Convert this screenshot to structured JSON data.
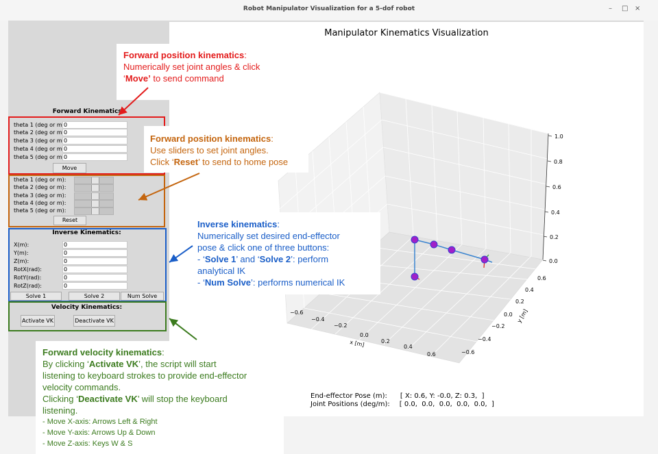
{
  "window": {
    "title": "Robot Manipulator Visualization for a 5-dof robot",
    "minimize": "–",
    "maximize": "□",
    "close": "×"
  },
  "fk": {
    "title": "Forward Kinematics:",
    "labels": [
      "theta 1 (deg or m):",
      "theta 2 (deg or m):",
      "theta 3 (deg or m):",
      "theta 4 (deg or m):",
      "theta 5 (deg or m):"
    ],
    "values": [
      "0",
      "0",
      "0",
      "0",
      "0"
    ],
    "move_label": "Move"
  },
  "sliders": {
    "labels": [
      "theta 1 (deg or m):",
      "theta 2 (deg or m):",
      "theta 3 (deg or m):",
      "theta 4 (deg or m):",
      "theta 5 (deg or m):"
    ],
    "reset_label": "Reset"
  },
  "ik": {
    "title": "Inverse Kinematics:",
    "labels": [
      "X(m):",
      "Y(m):",
      "Z(m):",
      "RotX(rad):",
      "RotY(rad):",
      "RotZ(rad):"
    ],
    "values": [
      "0",
      "0",
      "0",
      "0",
      "0",
      "0"
    ],
    "solve1_label": "Solve 1",
    "solve2_label": "Solve 2",
    "numsolve_label": "Num Solve"
  },
  "vk": {
    "title": "Velocity Kinematics:",
    "activate_label": "Activate VK",
    "deactivate_label": "Deactivate VK"
  },
  "plot": {
    "title": "Manipulator Kinematics Visualization",
    "z_ticks": [
      "1.0",
      "0.8",
      "0.6",
      "0.4",
      "0.2",
      "0.0"
    ],
    "y_ticks": [
      "0.6",
      "0.4",
      "0.2",
      "0.0",
      "−0.2",
      "−0.4",
      "−0.6"
    ],
    "x_ticks": [
      "−0.6",
      "−0.4",
      "−0.2",
      "0.0",
      "0.2",
      "0.4",
      "0.6"
    ],
    "xlabel": "x [m]",
    "ylabel": "y [m]",
    "pose_label": "End-effector Pose (m):",
    "pose_value": "[ X: 0.6, Y: -0.0, Z: 0.3,  ]",
    "joints_label": "Joint Positions (deg/m):",
    "joints_value": "[ 0.0,  0.0,  0.0,  0.0,  0.0,  ]"
  },
  "annotations": {
    "fk_heading": "Forward position kinematics",
    "fk_line1": "Numerically set joint angles & click",
    "fk_quote_open": "‘",
    "fk_move": "Move’",
    "fk_line2_rest": " to send command",
    "slider_heading": "Forward position kinematics",
    "slider_line1": "Use sliders to set joint angles.",
    "slider_line2_pre": "Click ‘",
    "slider_reset": "Reset",
    "slider_line2_post": "’ to send to home pose",
    "ik_heading": "Inverse kinematics",
    "ik_line1": "Numerically set desired end-effector",
    "ik_line2": "pose & click one of three buttons:",
    "ik_line3_pre": "- ‘",
    "ik_solve1": "Solve 1",
    "ik_line3_mid": "’ and ‘",
    "ik_solve2": "Solve 2",
    "ik_line3_post": "’: perform",
    "ik_line4": "analytical IK",
    "ik_line5_pre": "- ‘",
    "ik_numsolve": "Num Solve",
    "ik_line5_post": "’: performs numerical IK",
    "vk_heading": "Forward velocity kinematics",
    "vk_line1_pre": "By clicking ‘",
    "vk_activate": "Activate VK",
    "vk_line1_post": "’, the script will start",
    "vk_line2": "listening to keyboard strokes to provide end-effector",
    "vk_line3": "velocity commands.",
    "vk_line4_pre": "Clicking ‘",
    "vk_deactivate": "Deactivate VK",
    "vk_line4_post": "’ will stop the keyboard",
    "vk_line5": "listening.",
    "vk_line6": "- Move X-axis: Arrows Left & Right",
    "vk_line7": "- Move Y-axis: Arrows Up & Down",
    "vk_line8": "- Move Z-axis: Keys W & S"
  },
  "colors": {
    "red": "#e31b1b",
    "orange": "#c4650e",
    "blue": "#1a5ec8",
    "green": "#3b7b1e",
    "joint": "#a020c8",
    "link": "#3a84d0"
  }
}
